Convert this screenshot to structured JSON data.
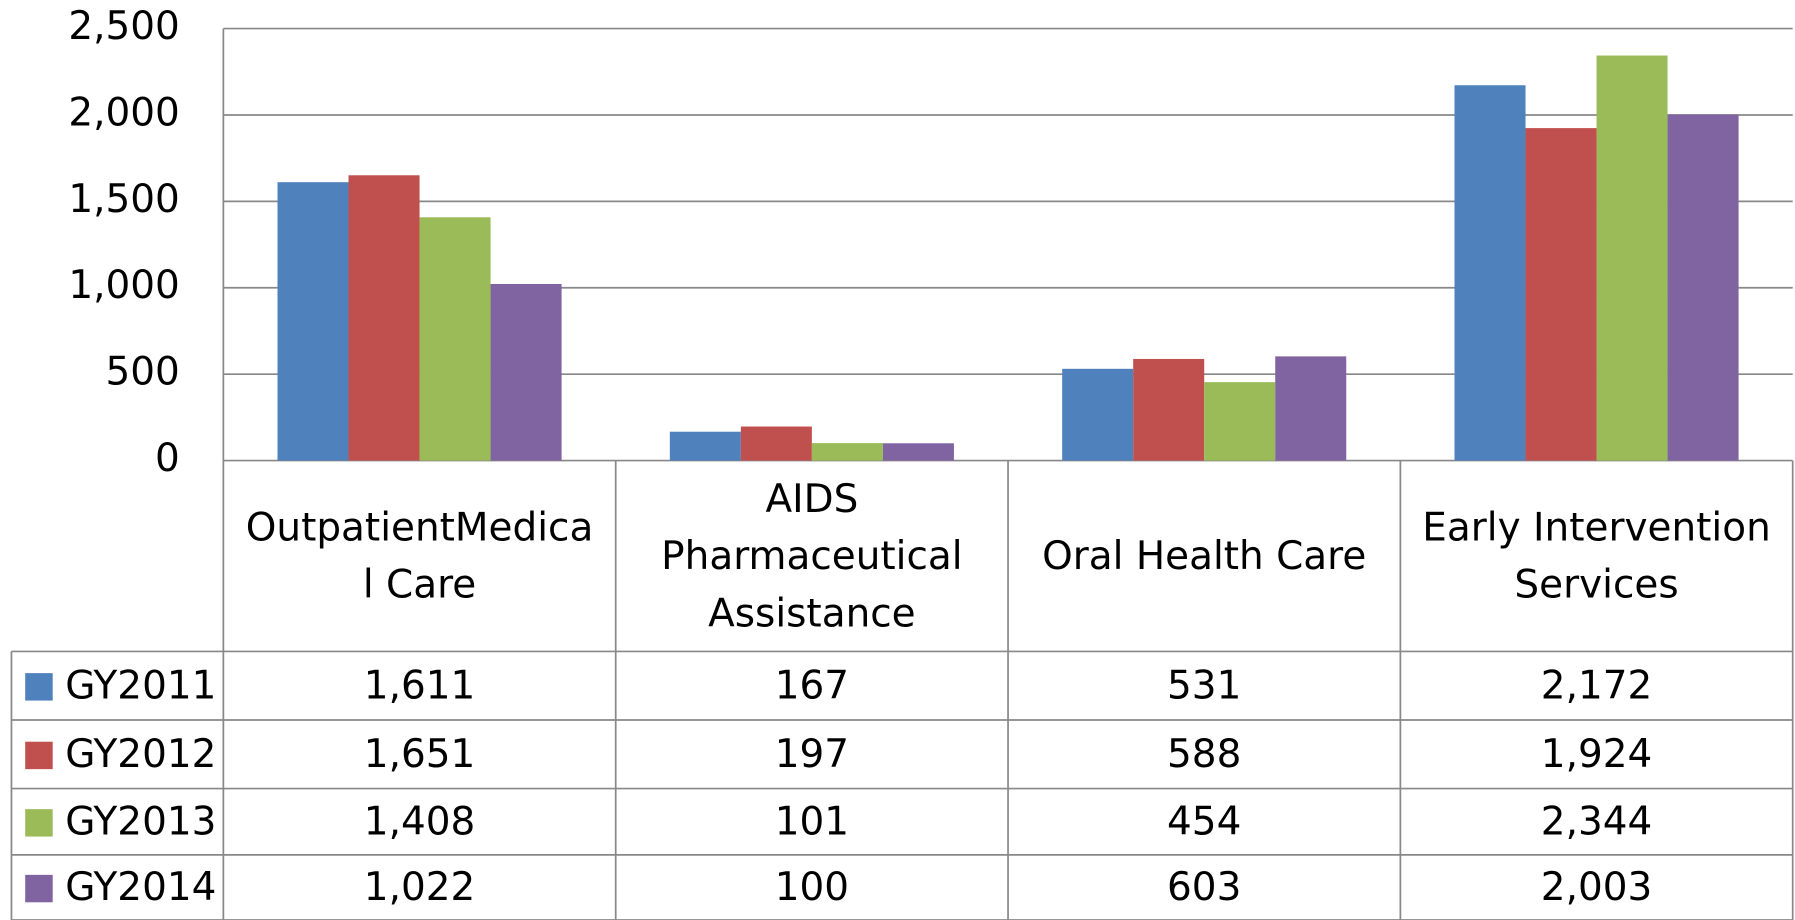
{
  "chart_data": {
    "type": "bar",
    "categories": [
      "OutpatientMedical Care",
      "AIDS Pharmaceutical Assistance",
      "Oral Health Care",
      "Early Intervention Services"
    ],
    "series": [
      {
        "name": "GY2011",
        "color": "#4f81bd",
        "values": [
          1611,
          167,
          531,
          2172
        ],
        "value_labels": [
          "1,611",
          "167",
          "531",
          "2,172"
        ]
      },
      {
        "name": "GY2012",
        "color": "#c0504d",
        "values": [
          1651,
          197,
          588,
          1924
        ],
        "value_labels": [
          "1,651",
          "197",
          "588",
          "1,924"
        ]
      },
      {
        "name": "GY2013",
        "color": "#9bbb59",
        "values": [
          1408,
          101,
          454,
          2344
        ],
        "value_labels": [
          "1,408",
          "101",
          "454",
          "2,344"
        ]
      },
      {
        "name": "GY2014",
        "color": "#8064a2",
        "values": [
          1022,
          100,
          603,
          2003
        ],
        "value_labels": [
          "1,022",
          "100",
          "603",
          "2,003"
        ]
      }
    ],
    "ylim": [
      0,
      2500
    ],
    "yticks": [
      0,
      500,
      {
        "value": 1000,
        "label": "1,000"
      },
      {
        "value": 1500,
        "label": "1,500"
      },
      {
        "value": 2000,
        "label": "2,000"
      },
      {
        "value": 2500,
        "label": "2,500"
      }
    ],
    "grid": true
  }
}
